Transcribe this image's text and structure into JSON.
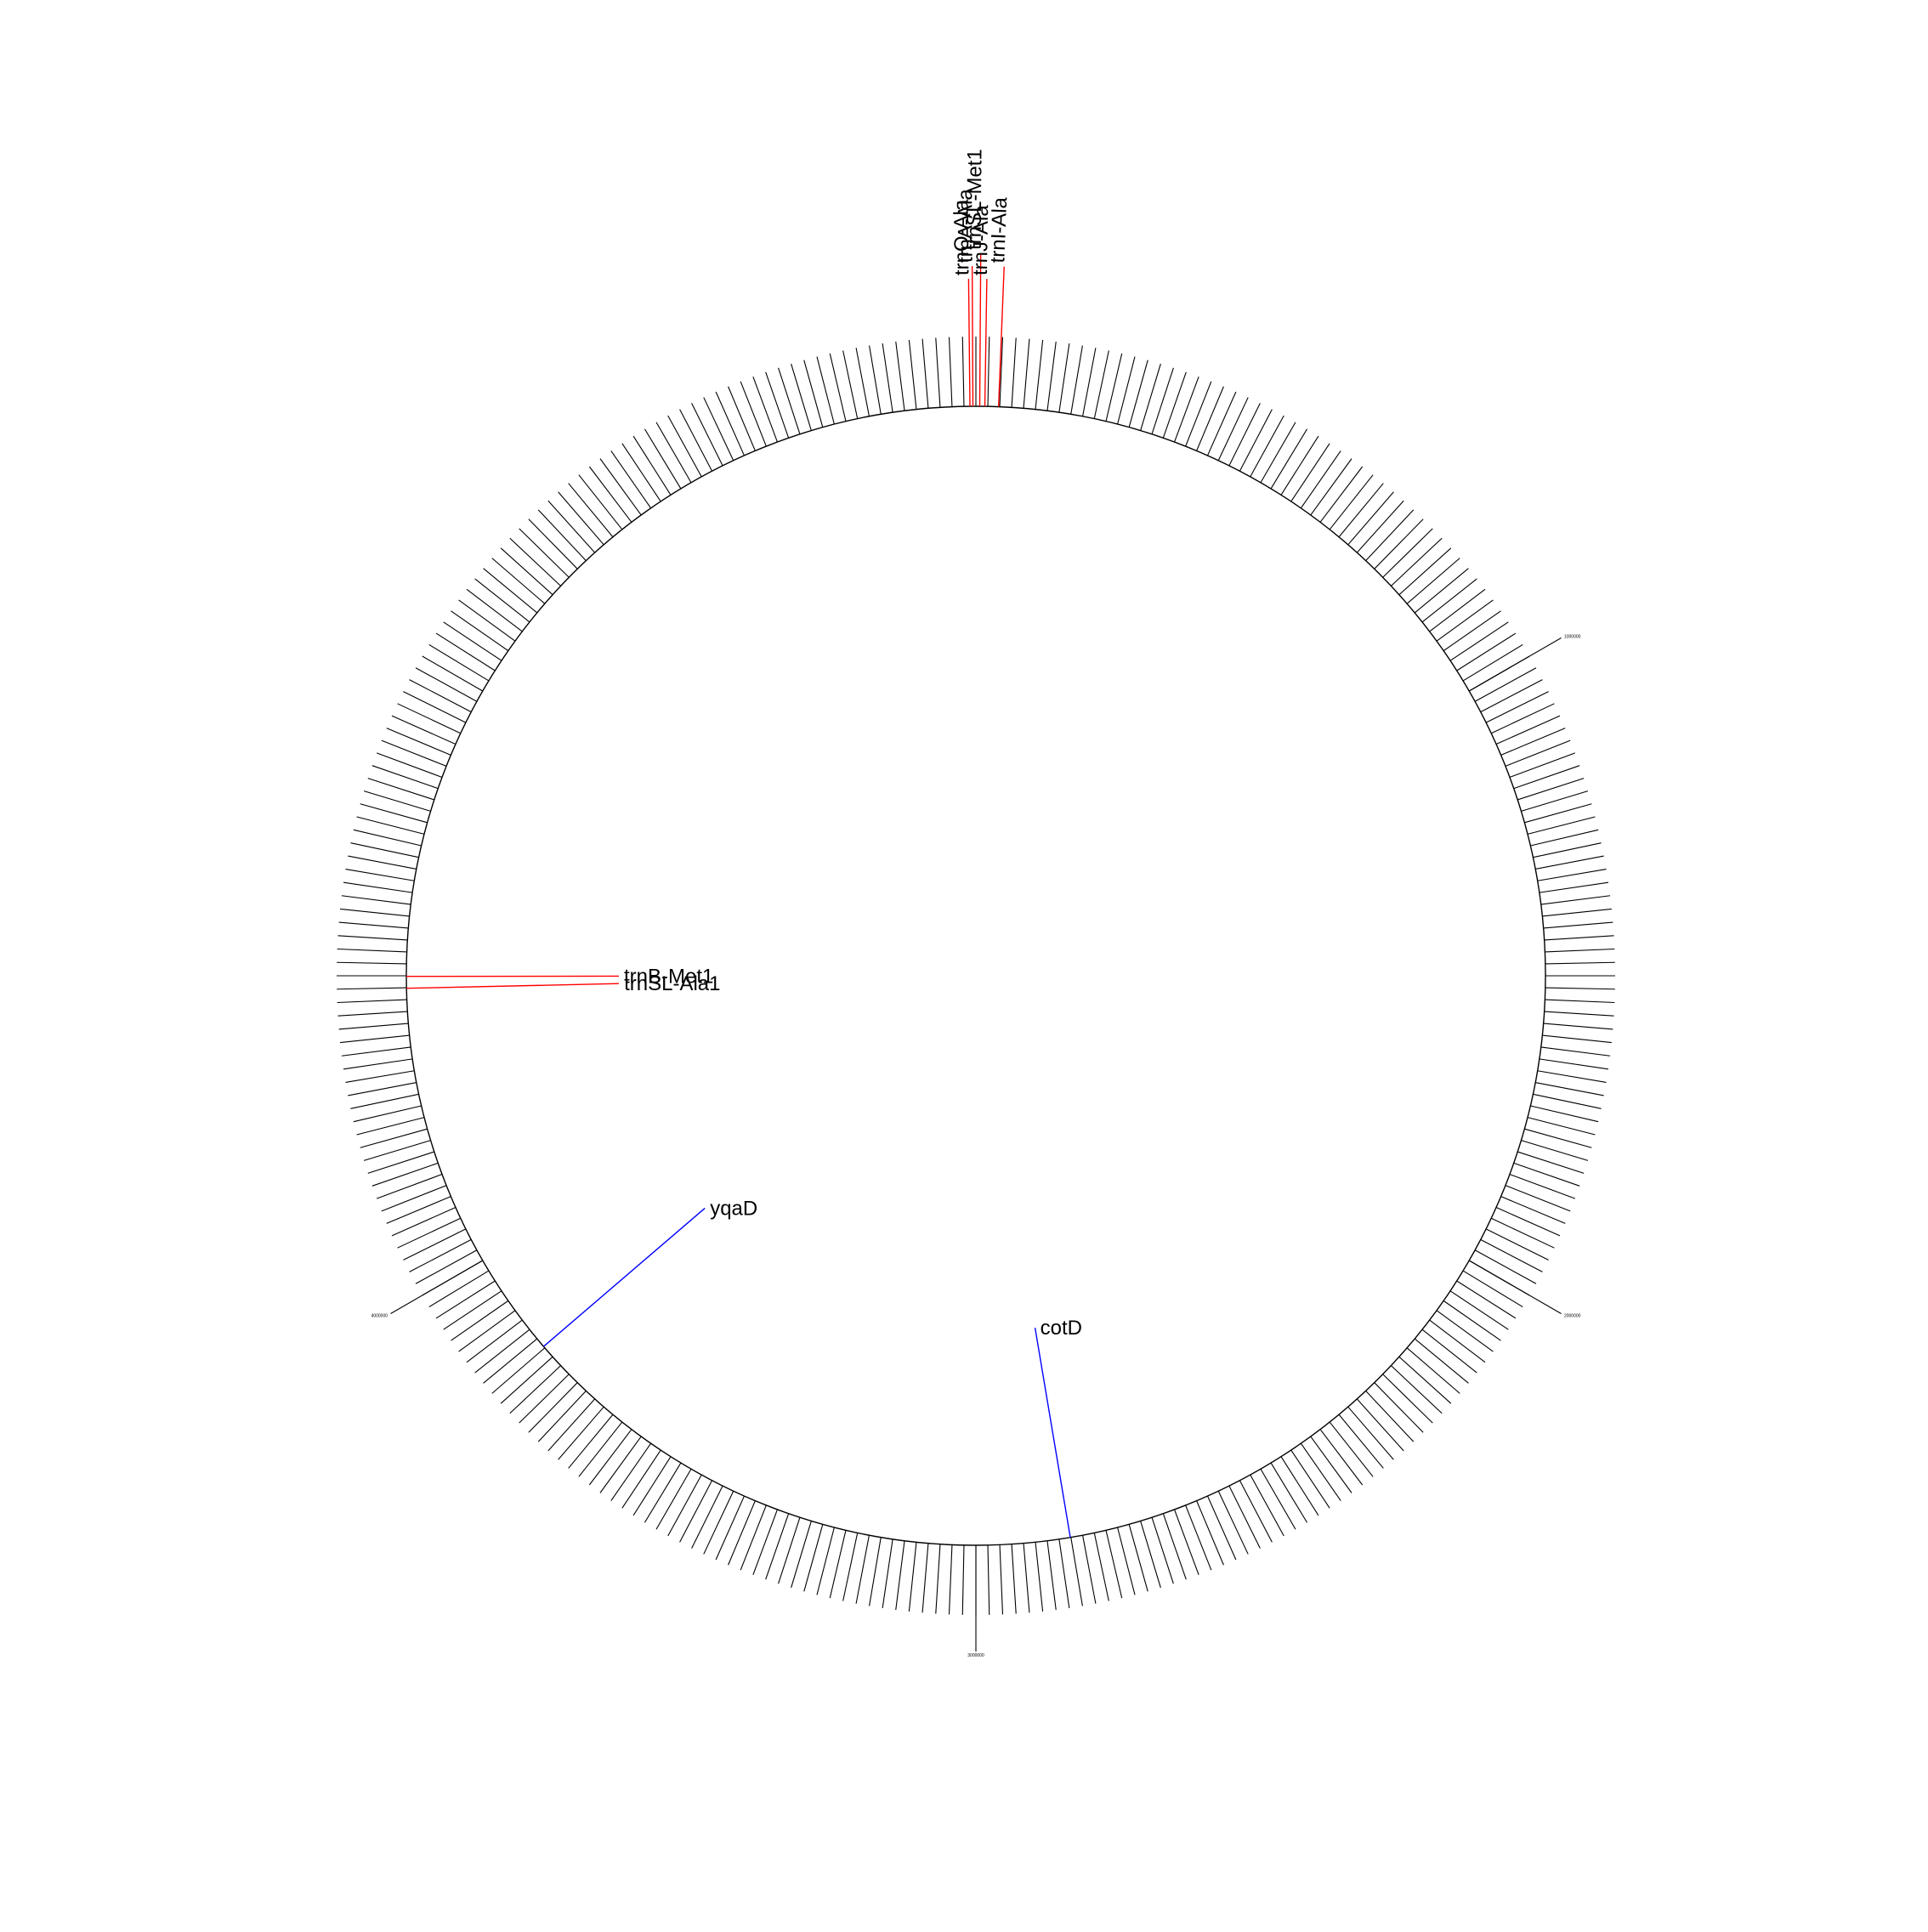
{
  "chart_data": {
    "type": "circular-genome-map",
    "genome_length": 6000000,
    "tick_interval_bp": 20000,
    "scale_labels": [
      "1000000",
      "2000000",
      "3000000",
      "4000000"
    ],
    "features": [
      {
        "name": "trnO-Ala",
        "position": 5990000,
        "color": "#ff0000"
      },
      {
        "name": "trnA-Ala",
        "position": 5995000,
        "color": "#ff0000"
      },
      {
        "name": "trnSL-Met1",
        "position": 6400,
        "color": "#ff0000"
      },
      {
        "name": "trnJ-Ala",
        "position": 15000,
        "color": "#ff0000"
      },
      {
        "name": "trnI-Ala",
        "position": 38000,
        "color": "#ff0000"
      },
      {
        "name": "trnSL-Ala1",
        "position": 4479000,
        "color": "#ff0000"
      },
      {
        "name": "trnB-Met1",
        "position": 4499000,
        "color": "#ff0000"
      },
      {
        "name": "yqaD",
        "position": 3823000,
        "color": "#0000ff"
      },
      {
        "name": "cotD",
        "position": 2841000,
        "color": "#0000ff"
      }
    ]
  },
  "colors": {
    "ring": "#000000",
    "rna_feature": "#ff0000",
    "cds_feature": "#0000ff"
  }
}
